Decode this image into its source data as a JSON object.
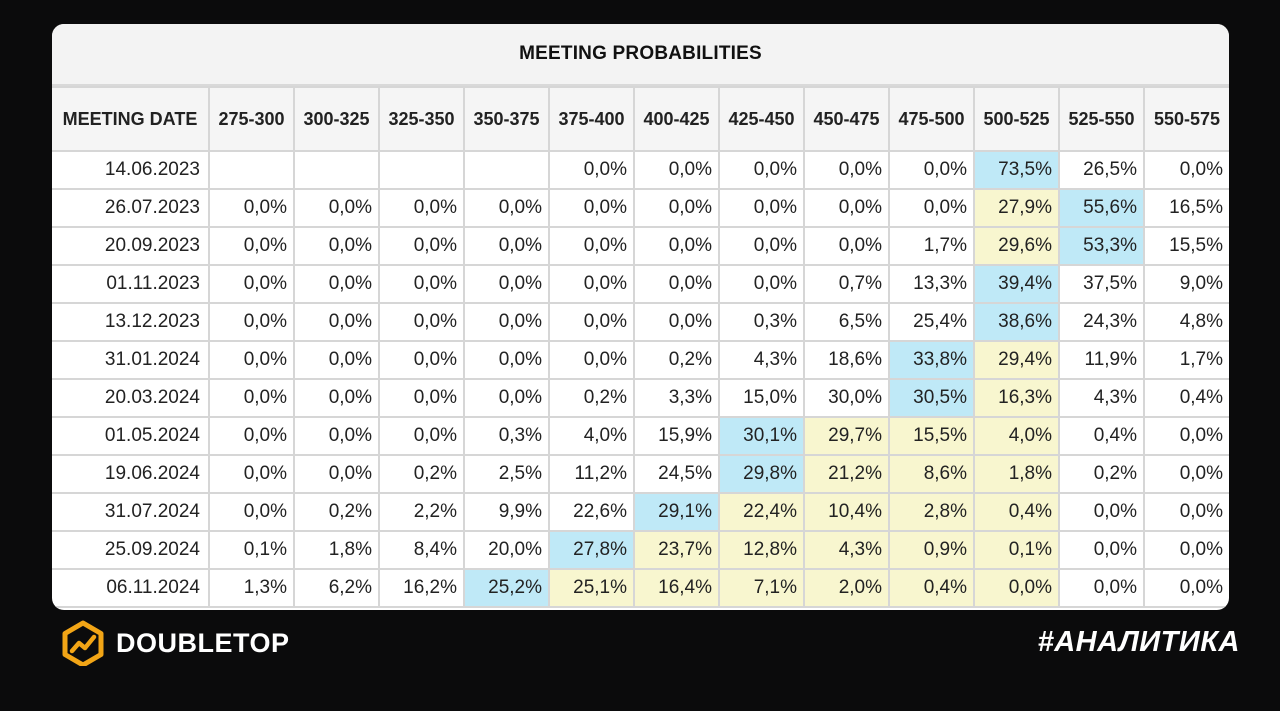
{
  "chart_data": {
    "type": "table",
    "title": "MEETING PROBABILITIES",
    "columns": [
      "MEETING DATE",
      "275-300",
      "300-325",
      "325-350",
      "350-375",
      "375-400",
      "400-425",
      "425-450",
      "450-475",
      "475-500",
      "500-525",
      "525-550",
      "550-575"
    ],
    "rows": [
      {
        "date": "14.06.2023",
        "values": [
          "",
          "",
          "",
          "",
          "0,0%",
          "0,0%",
          "0,0%",
          "0,0%",
          "0,0%",
          "73,5%",
          "26,5%",
          "0,0%"
        ],
        "highlight": [
          "",
          "",
          "",
          "",
          "",
          "",
          "",
          "",
          "",
          "blue",
          "",
          ""
        ]
      },
      {
        "date": "26.07.2023",
        "values": [
          "0,0%",
          "0,0%",
          "0,0%",
          "0,0%",
          "0,0%",
          "0,0%",
          "0,0%",
          "0,0%",
          "0,0%",
          "27,9%",
          "55,6%",
          "16,5%"
        ],
        "highlight": [
          "",
          "",
          "",
          "",
          "",
          "",
          "",
          "",
          "",
          "yellow",
          "blue",
          ""
        ]
      },
      {
        "date": "20.09.2023",
        "values": [
          "0,0%",
          "0,0%",
          "0,0%",
          "0,0%",
          "0,0%",
          "0,0%",
          "0,0%",
          "0,0%",
          "1,7%",
          "29,6%",
          "53,3%",
          "15,5%"
        ],
        "highlight": [
          "",
          "",
          "",
          "",
          "",
          "",
          "",
          "",
          "",
          "yellow",
          "blue",
          ""
        ]
      },
      {
        "date": "01.11.2023",
        "values": [
          "0,0%",
          "0,0%",
          "0,0%",
          "0,0%",
          "0,0%",
          "0,0%",
          "0,0%",
          "0,7%",
          "13,3%",
          "39,4%",
          "37,5%",
          "9,0%"
        ],
        "highlight": [
          "",
          "",
          "",
          "",
          "",
          "",
          "",
          "",
          "",
          "blue",
          "",
          ""
        ]
      },
      {
        "date": "13.12.2023",
        "values": [
          "0,0%",
          "0,0%",
          "0,0%",
          "0,0%",
          "0,0%",
          "0,0%",
          "0,3%",
          "6,5%",
          "25,4%",
          "38,6%",
          "24,3%",
          "4,8%"
        ],
        "highlight": [
          "",
          "",
          "",
          "",
          "",
          "",
          "",
          "",
          "",
          "blue",
          "",
          ""
        ]
      },
      {
        "date": "31.01.2024",
        "values": [
          "0,0%",
          "0,0%",
          "0,0%",
          "0,0%",
          "0,0%",
          "0,2%",
          "4,3%",
          "18,6%",
          "33,8%",
          "29,4%",
          "11,9%",
          "1,7%"
        ],
        "highlight": [
          "",
          "",
          "",
          "",
          "",
          "",
          "",
          "",
          "blue",
          "yellow",
          "",
          ""
        ]
      },
      {
        "date": "20.03.2024",
        "values": [
          "0,0%",
          "0,0%",
          "0,0%",
          "0,0%",
          "0,2%",
          "3,3%",
          "15,0%",
          "30,0%",
          "30,5%",
          "16,3%",
          "4,3%",
          "0,4%"
        ],
        "highlight": [
          "",
          "",
          "",
          "",
          "",
          "",
          "",
          "",
          "blue",
          "yellow",
          "",
          ""
        ]
      },
      {
        "date": "01.05.2024",
        "values": [
          "0,0%",
          "0,0%",
          "0,0%",
          "0,3%",
          "4,0%",
          "15,9%",
          "30,1%",
          "29,7%",
          "15,5%",
          "4,0%",
          "0,4%",
          "0,0%"
        ],
        "highlight": [
          "",
          "",
          "",
          "",
          "",
          "",
          "blue",
          "yellow",
          "yellow",
          "yellow",
          "",
          ""
        ]
      },
      {
        "date": "19.06.2024",
        "values": [
          "0,0%",
          "0,0%",
          "0,2%",
          "2,5%",
          "11,2%",
          "24,5%",
          "29,8%",
          "21,2%",
          "8,6%",
          "1,8%",
          "0,2%",
          "0,0%"
        ],
        "highlight": [
          "",
          "",
          "",
          "",
          "",
          "",
          "blue",
          "yellow",
          "yellow",
          "yellow",
          "",
          ""
        ]
      },
      {
        "date": "31.07.2024",
        "values": [
          "0,0%",
          "0,2%",
          "2,2%",
          "9,9%",
          "22,6%",
          "29,1%",
          "22,4%",
          "10,4%",
          "2,8%",
          "0,4%",
          "0,0%",
          "0,0%"
        ],
        "highlight": [
          "",
          "",
          "",
          "",
          "",
          "blue",
          "yellow",
          "yellow",
          "yellow",
          "yellow",
          "",
          ""
        ]
      },
      {
        "date": "25.09.2024",
        "values": [
          "0,1%",
          "1,8%",
          "8,4%",
          "20,0%",
          "27,8%",
          "23,7%",
          "12,8%",
          "4,3%",
          "0,9%",
          "0,1%",
          "0,0%",
          "0,0%"
        ],
        "highlight": [
          "",
          "",
          "",
          "",
          "blue",
          "yellow",
          "yellow",
          "yellow",
          "yellow",
          "yellow",
          "",
          ""
        ]
      },
      {
        "date": "06.11.2024",
        "values": [
          "1,3%",
          "6,2%",
          "16,2%",
          "25,2%",
          "25,1%",
          "16,4%",
          "7,1%",
          "2,0%",
          "0,4%",
          "0,0%",
          "0,0%",
          "0,0%"
        ],
        "highlight": [
          "",
          "",
          "",
          "blue",
          "yellow",
          "yellow",
          "yellow",
          "yellow",
          "yellow",
          "yellow",
          "",
          ""
        ]
      }
    ]
  },
  "colors": {
    "highlight_blue": "#bfe9f7",
    "highlight_yellow": "#f8f6cf",
    "background": "#0b0b0c",
    "brand_gold": "#f2a516"
  },
  "footer": {
    "brand_name": "DOUBLETOP",
    "brand_icon": "doubletop-logo-icon",
    "hashtag": "#АНАЛИТИКА"
  }
}
